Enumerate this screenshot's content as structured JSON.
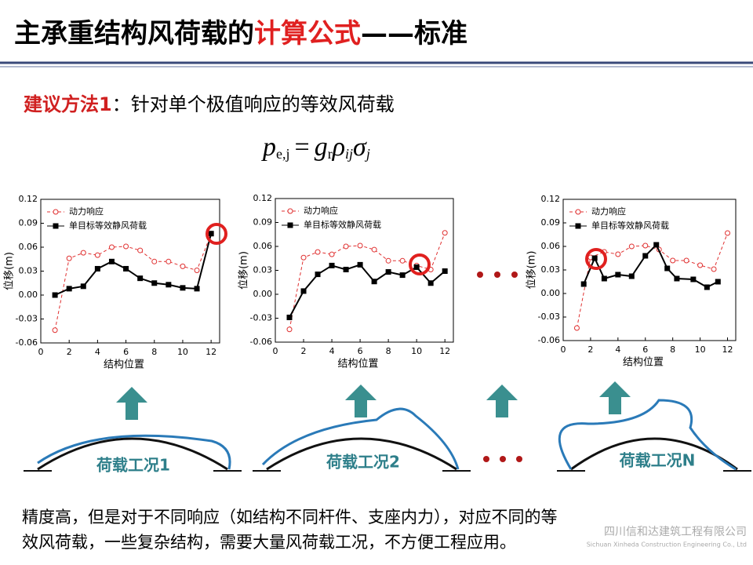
{
  "slide": {
    "title": [
      "主承重结构风荷载的",
      "计算公式",
      "——标准"
    ],
    "subtitle": [
      "建议方法1",
      "：针对单个极值响应的等效风荷载"
    ],
    "formula": [
      "p",
      "e,j",
      "=",
      "g",
      "r",
      "ρ",
      "ij",
      "σ",
      "j"
    ],
    "cases": [
      "荷载工况1",
      "荷载工况2",
      "荷载工况N"
    ],
    "body": [
      "精度高，但是对于不同响应（如结构不同杆件、支座内力），对应不同的等",
      "效风荷载，一些复杂结构，需要大量风荷载工况，不方便工程应用。"
    ],
    "watermark": [
      "四川信和达建筑工程有限公司",
      "Sichuan Xinheda Construction Engineering Co., Ltd"
    ]
  },
  "chart_data": [
    {
      "type": "line",
      "xlabel": "结构位置",
      "ylabel": "位移(m)",
      "xlim": [
        0,
        12.6
      ],
      "xticks": [
        0,
        2,
        4,
        6,
        8,
        10,
        12
      ],
      "ylim": [
        -0.06,
        0.12
      ],
      "yticks": [
        -0.06,
        -0.03,
        {
          "value": 0,
          "label": "0.00"
        },
        0.03,
        0.06,
        0.09,
        0.12
      ],
      "series": [
        {
          "name": "动力响应",
          "color": "#e03030",
          "linestyle": "dashed",
          "marker": "circle-open",
          "x": [
            1,
            2,
            3,
            4,
            5,
            6,
            7,
            8,
            9,
            10,
            11,
            12
          ],
          "values": [
            -0.044,
            0.046,
            0.053,
            0.05,
            0.06,
            0.061,
            0.056,
            0.042,
            0.042,
            0.036,
            0.031,
            0.077
          ]
        },
        {
          "name": "单目标等效静风荷载",
          "color": "#000000",
          "linestyle": "solid",
          "marker": "square",
          "x": [
            1,
            2,
            3,
            4,
            5,
            6,
            7,
            8,
            9,
            10,
            11,
            12
          ],
          "values": [
            0,
            0.008,
            0.011,
            0.033,
            0.042,
            0.033,
            0.021,
            0.015,
            0.013,
            0.009,
            0.008,
            0.077
          ]
        }
      ]
    },
    {
      "type": "line",
      "xlabel": "结构位置",
      "ylabel": "位移(m)",
      "xlim": [
        0,
        12.6
      ],
      "xticks": [
        0,
        2,
        4,
        6,
        8,
        10,
        12
      ],
      "ylim": [
        -0.06,
        0.12
      ],
      "yticks": [
        -0.06,
        -0.03,
        {
          "value": 0,
          "label": "0.00"
        },
        0.03,
        0.06,
        0.09,
        0.12
      ],
      "series": [
        {
          "name": "动力响应",
          "color": "#e03030",
          "linestyle": "dashed",
          "marker": "circle-open",
          "x": [
            1,
            2,
            3,
            4,
            5,
            6,
            7,
            8,
            9,
            10,
            11,
            12
          ],
          "values": [
            -0.044,
            0.046,
            0.053,
            0.05,
            0.06,
            0.061,
            0.056,
            0.042,
            0.042,
            0.036,
            0.031,
            0.077
          ]
        },
        {
          "name": "单目标等效静风荷载",
          "color": "#000000",
          "linestyle": "solid",
          "marker": "square",
          "x": [
            1,
            2,
            3,
            4,
            5,
            6,
            7,
            8,
            9,
            10,
            11,
            12
          ],
          "values": [
            -0.029,
            0.004,
            0.025,
            0.036,
            0.031,
            0.037,
            0.016,
            0.028,
            0.024,
            0.034,
            0.014,
            0.029
          ]
        }
      ]
    },
    {
      "type": "line",
      "xlabel": "结构位置",
      "ylabel": "位移(m)",
      "xlim": [
        0,
        12.6
      ],
      "xticks": [
        0,
        2,
        4,
        6,
        8,
        10,
        12
      ],
      "ylim": [
        -0.06,
        0.12
      ],
      "yticks": [
        -0.06,
        -0.03,
        {
          "value": 0,
          "label": "0.00"
        },
        0.03,
        0.06,
        0.09,
        0.12
      ],
      "series": [
        {
          "name": "动力响应",
          "color": "#e03030",
          "linestyle": "dashed",
          "marker": "circle-open",
          "x": [
            1,
            2,
            3,
            4,
            5,
            6,
            7,
            8,
            9,
            10,
            11,
            12
          ],
          "values": [
            -0.044,
            0.046,
            0.053,
            0.05,
            0.06,
            0.061,
            0.056,
            0.042,
            0.042,
            0.036,
            0.031,
            0.077
          ]
        },
        {
          "name": "单目标等效静风荷载",
          "color": "#000000",
          "linestyle": "solid",
          "marker": "square",
          "x": [
            1.5,
            2.3,
            3,
            4,
            5,
            6,
            6.8,
            7.6,
            8.3,
            9.5,
            10.5,
            11.3
          ],
          "values": [
            0.012,
            0.045,
            0.019,
            0.024,
            0.022,
            0.048,
            0.062,
            0.032,
            0.019,
            0.018,
            0.008,
            0.015
          ]
        }
      ]
    }
  ]
}
